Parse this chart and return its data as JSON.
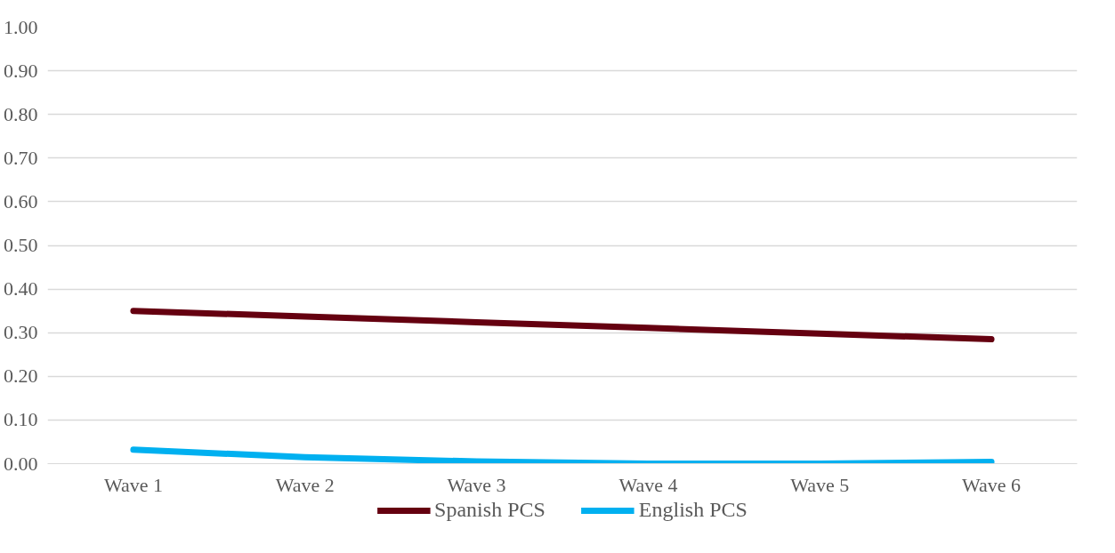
{
  "chart_data": {
    "type": "line",
    "categories": [
      "Wave 1",
      "Wave 2",
      "Wave 3",
      "Wave 4",
      "Wave 5",
      "Wave 6"
    ],
    "series": [
      {
        "name": "Spanish PCS",
        "color": "#650010",
        "values": [
          0.35,
          0.337,
          0.324,
          0.311,
          0.298,
          0.285
        ]
      },
      {
        "name": "English PCS",
        "color": "#00b0f0",
        "values": [
          0.032,
          0.015,
          0.005,
          0.0,
          0.0,
          0.004
        ]
      }
    ],
    "ylim": [
      0,
      1.0
    ],
    "yticks": [
      {
        "value": 0,
        "label": "0.00"
      },
      {
        "value": 0.1,
        "label": "0.10"
      },
      {
        "value": 0.2,
        "label": "0.20"
      },
      {
        "value": 0.3,
        "label": "0.30"
      },
      {
        "value": 0.4,
        "label": "0.40"
      },
      {
        "value": 0.5,
        "label": "0.50"
      },
      {
        "value": 0.6,
        "label": "0.60"
      },
      {
        "value": 0.7,
        "label": "0.70"
      },
      {
        "value": 0.8,
        "label": "0.80"
      },
      {
        "value": 0.9,
        "label": "0.90"
      },
      {
        "value": 1.0,
        "label": "1.00"
      }
    ],
    "grid": "y",
    "legend": "bottom",
    "marker": "none",
    "line_style": "solid"
  }
}
